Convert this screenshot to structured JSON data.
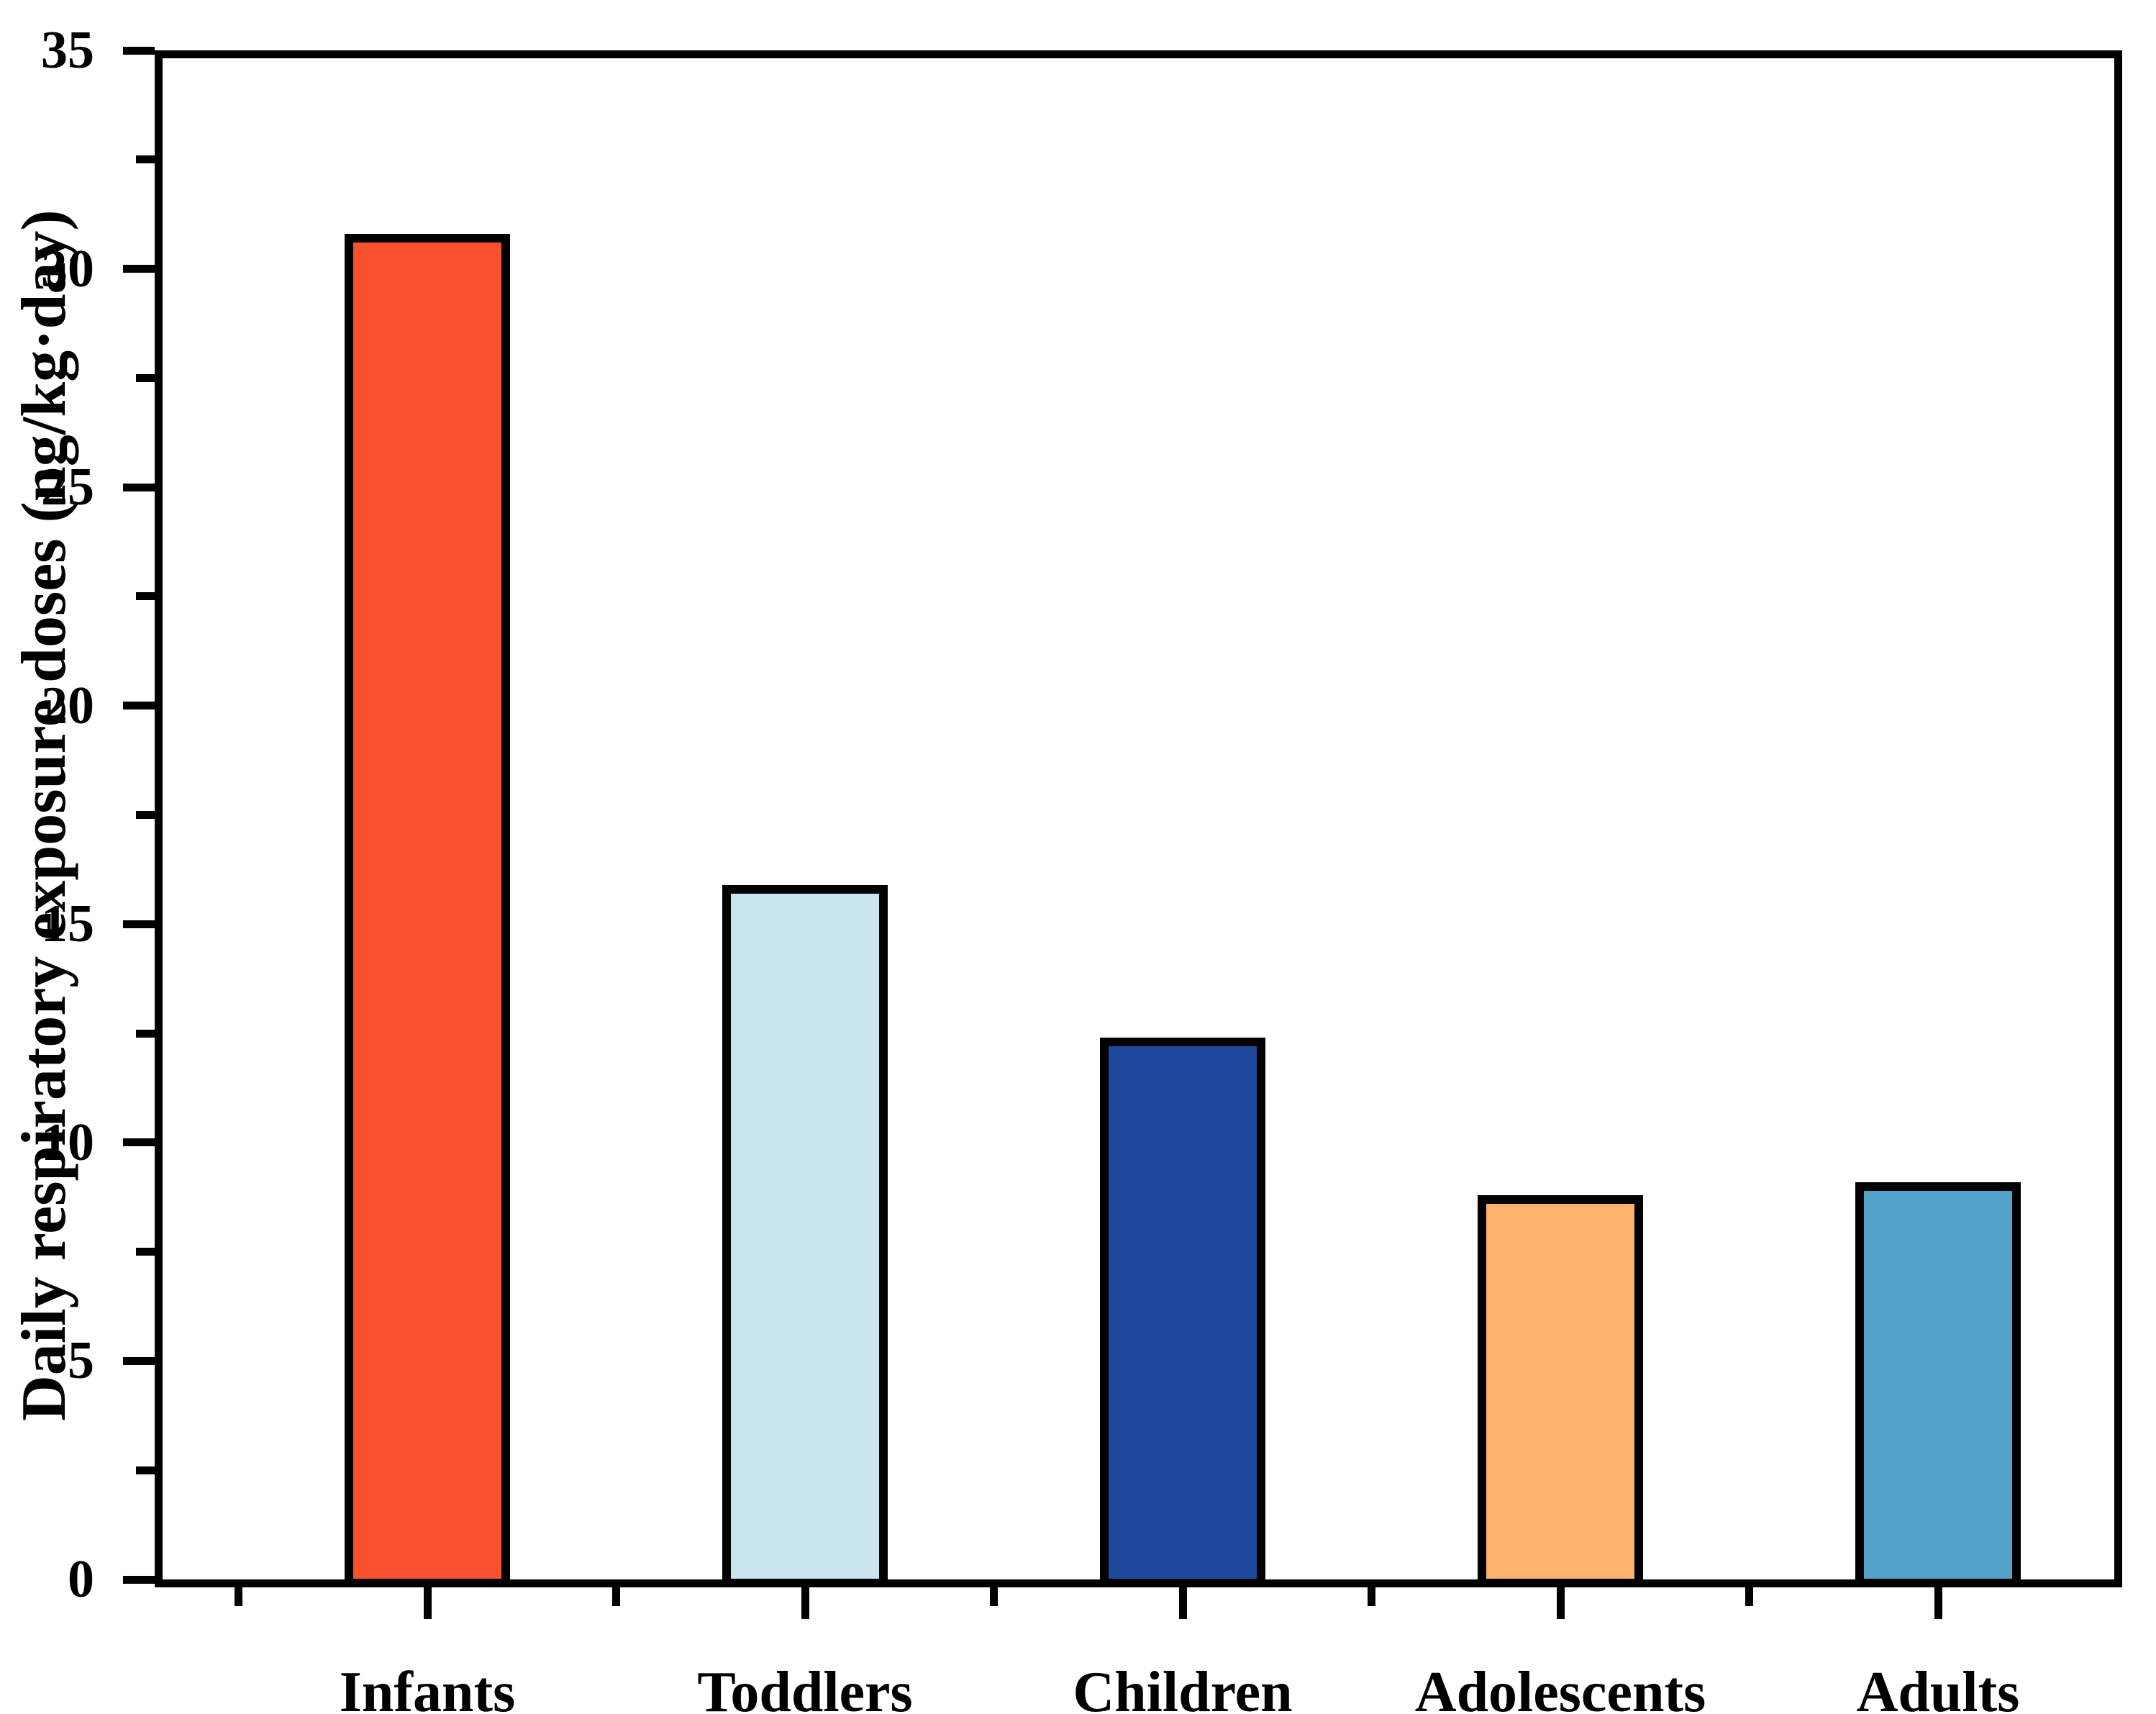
{
  "figure": {
    "background_color": "#ffffff",
    "axis_color": "#000000",
    "text_color": "#000000"
  },
  "chart_data": {
    "type": "bar",
    "title": "",
    "xlabel": "",
    "ylabel": "Daily respiratory exposure doses (ng/kg·day)",
    "categories": [
      "Infants",
      "Toddlers",
      "Children",
      "Adolescents",
      "Adults"
    ],
    "values": [
      30.8,
      15.9,
      12.4,
      8.8,
      9.1
    ],
    "bar_colors": [
      "#F8502D",
      "#C8E4EE",
      "#1E489B",
      "#FBB26B",
      "#54A2C9"
    ],
    "bar_edge_color": "#000000",
    "ylim": [
      0,
      35
    ],
    "y_major_ticks": [
      0,
      5,
      10,
      15,
      20,
      25,
      30,
      35
    ],
    "y_minor_tick_step": 2.5,
    "x_tick_style": "major tick under each category center, minor tick at midpoints, ticks pointing outward",
    "grid": false,
    "legend": false,
    "plot_frame": "closed box"
  }
}
